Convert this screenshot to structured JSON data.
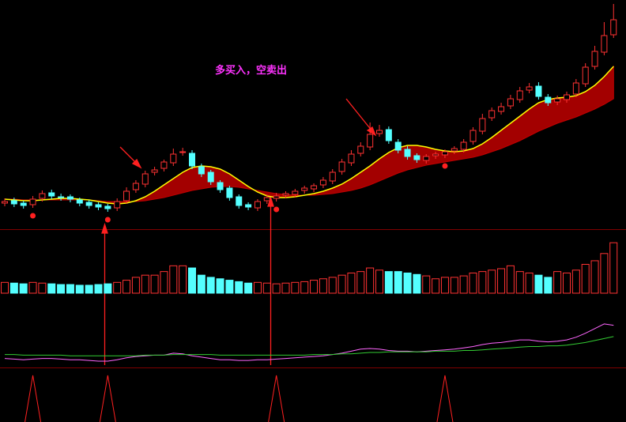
{
  "chart_data": {
    "type": "candlestick",
    "annotation": "多买入，空卖出",
    "ylim": [
      0,
      290
    ],
    "up_color": "#ff3232",
    "down_color": "#54ffff",
    "open": [
      33,
      36,
      33,
      31,
      39,
      46,
      41,
      41,
      37,
      34,
      31,
      29,
      27,
      36,
      50,
      57,
      72,
      77,
      84,
      97,
      96,
      79,
      72,
      59,
      52,
      41,
      31,
      27,
      36,
      39,
      43,
      44,
      49,
      51,
      56,
      61,
      73,
      84,
      96,
      104,
      121,
      126,
      110,
      101,
      93,
      87,
      93,
      94,
      99,
      101,
      111,
      124,
      141,
      149,
      156,
      164,
      176,
      181,
      167,
      161,
      164,
      171,
      184,
      206,
      224,
      246
    ],
    "high": [
      39,
      40,
      36,
      42,
      49,
      50,
      45,
      44,
      40,
      37,
      34,
      32,
      39,
      53,
      62,
      74,
      79,
      88,
      102,
      103,
      100,
      83,
      75,
      62,
      55,
      44,
      34,
      38,
      44,
      46,
      48,
      51,
      55,
      58,
      66,
      76,
      89,
      100,
      110,
      135,
      132,
      130,
      114,
      105,
      96,
      95,
      98,
      101,
      105,
      114,
      129,
      146,
      154,
      160,
      170,
      180,
      185,
      186,
      171,
      169,
      174,
      190,
      210,
      232,
      262,
      285
    ],
    "low": [
      29,
      28,
      26,
      27,
      35,
      38,
      36,
      34,
      29,
      26,
      24,
      22,
      23,
      32,
      46,
      53,
      68,
      73,
      80,
      93,
      76,
      66,
      56,
      46,
      36,
      26,
      24,
      23,
      32,
      35,
      39,
      40,
      45,
      47,
      52,
      57,
      69,
      80,
      92,
      100,
      117,
      108,
      96,
      88,
      84,
      83,
      89,
      90,
      95,
      97,
      107,
      120,
      137,
      145,
      152,
      160,
      172,
      164,
      156,
      157,
      160,
      167,
      180,
      202,
      220,
      242
    ],
    "close": [
      35,
      32,
      30,
      38,
      45,
      42,
      40,
      38,
      33,
      30,
      28,
      26,
      35,
      48,
      58,
      70,
      75,
      85,
      95,
      98,
      80,
      70,
      60,
      50,
      40,
      30,
      28,
      35,
      40,
      42,
      45,
      48,
      52,
      55,
      62,
      72,
      85,
      95,
      105,
      120,
      125,
      112,
      100,
      92,
      88,
      92,
      95,
      98,
      102,
      110,
      125,
      140,
      150,
      155,
      165,
      175,
      180,
      168,
      160,
      165,
      170,
      185,
      205,
      225,
      245,
      265
    ],
    "ma_fast": {
      "color": "#ffff00",
      "values": [
        38,
        37,
        36,
        36,
        37,
        38,
        39,
        39,
        38,
        37,
        35,
        33,
        32,
        33,
        36,
        41,
        48,
        56,
        64,
        72,
        78,
        80,
        79,
        76,
        70,
        62,
        54,
        47,
        42,
        40,
        40,
        41,
        43,
        45,
        48,
        52,
        57,
        64,
        72,
        80,
        89,
        97,
        103,
        106,
        106,
        104,
        101,
        99,
        98,
        99,
        102,
        108,
        116,
        125,
        134,
        143,
        152,
        160,
        164,
        166,
        167,
        169,
        174,
        182,
        193,
        206
      ]
    },
    "ma_slow": {
      "color": "#c00000",
      "values": [
        38,
        38,
        37,
        37,
        37,
        37,
        37,
        37,
        37,
        37,
        36,
        35,
        35,
        35,
        35,
        36,
        38,
        40,
        43,
        46,
        49,
        51,
        53,
        54,
        54,
        53,
        51,
        49,
        47,
        45,
        44,
        43,
        43,
        43,
        44,
        45,
        47,
        49,
        52,
        56,
        61,
        66,
        71,
        75,
        78,
        81,
        83,
        85,
        87,
        89,
        91,
        94,
        98,
        102,
        107,
        112,
        118,
        124,
        129,
        134,
        138,
        142,
        147,
        152,
        158,
        165
      ]
    },
    "volume": {
      "ylim": [
        0,
        80
      ],
      "values": [
        15,
        14,
        13,
        15,
        14,
        13,
        12,
        12,
        11,
        11,
        12,
        13,
        15,
        18,
        22,
        25,
        25,
        30,
        38,
        38,
        35,
        25,
        22,
        20,
        18,
        16,
        14,
        15,
        14,
        13,
        14,
        15,
        16,
        18,
        20,
        22,
        25,
        28,
        30,
        35,
        32,
        30,
        30,
        28,
        26,
        24,
        20,
        22,
        22,
        24,
        28,
        30,
        32,
        34,
        38,
        30,
        28,
        25,
        22,
        30,
        28,
        32,
        40,
        45,
        55,
        70
      ]
    },
    "indicator": {
      "ylim": [
        0,
        100
      ],
      "series": [
        {
          "color": "#ff66ff",
          "values": [
            10,
            9,
            8,
            9,
            10,
            10,
            9,
            8,
            8,
            7,
            6,
            6,
            8,
            11,
            13,
            14,
            15,
            15,
            18,
            17,
            14,
            12,
            10,
            8,
            8,
            7,
            7,
            8,
            8,
            9,
            10,
            11,
            12,
            13,
            14,
            16,
            18,
            21,
            24,
            25,
            24,
            22,
            21,
            21,
            20,
            21,
            22,
            23,
            24,
            26,
            28,
            31,
            33,
            34,
            36,
            38,
            38,
            36,
            35,
            36,
            38,
            42,
            48,
            55,
            62,
            60
          ]
        },
        {
          "color": "#33cc33",
          "values": [
            16,
            16,
            15,
            15,
            15,
            15,
            15,
            14,
            14,
            14,
            14,
            14,
            14,
            14,
            14,
            15,
            15,
            15,
            16,
            16,
            16,
            16,
            16,
            15,
            15,
            15,
            15,
            15,
            15,
            15,
            15,
            15,
            15,
            16,
            16,
            16,
            17,
            17,
            18,
            19,
            19,
            20,
            20,
            20,
            20,
            20,
            21,
            21,
            21,
            22,
            22,
            23,
            24,
            25,
            26,
            27,
            28,
            28,
            29,
            29,
            30,
            32,
            34,
            37,
            40,
            43
          ]
        }
      ]
    },
    "signals": {
      "ylim": [
        0,
        1
      ],
      "color": "#ff2020",
      "values": [
        0,
        0,
        0,
        1,
        0,
        0,
        0,
        0,
        0,
        0,
        0,
        1,
        0,
        0,
        0,
        0,
        0,
        0,
        0,
        0,
        0,
        0,
        0,
        0,
        0,
        0,
        0,
        0,
        0,
        1,
        0,
        0,
        0,
        0,
        0,
        0,
        0,
        0,
        0,
        0,
        0,
        0,
        0,
        0,
        0,
        0,
        0,
        1,
        0,
        0,
        0,
        0,
        0,
        0,
        0,
        0,
        0,
        0,
        0,
        0,
        0,
        0,
        0,
        0,
        0,
        0
      ]
    }
  }
}
